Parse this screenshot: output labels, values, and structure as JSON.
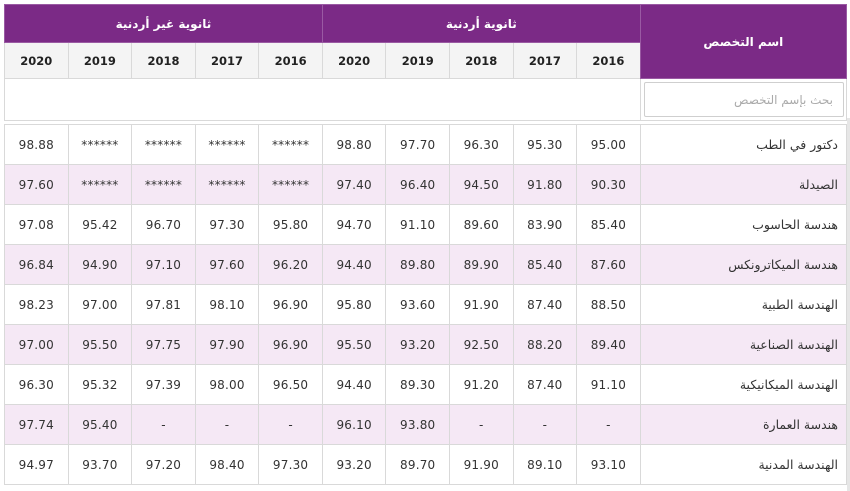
{
  "table": {
    "spec_header": "اسم التخصص",
    "groups": [
      {
        "id": "jordanian",
        "label": "ثانوية أردنية"
      },
      {
        "id": "non_jordanian",
        "label": "ثانوية غير أردنية"
      }
    ],
    "years": [
      "2016",
      "2017",
      "2018",
      "2019",
      "2020"
    ],
    "search": {
      "placeholder": "بحث بإسم التخصص",
      "value": ""
    },
    "rows": [
      {
        "name": "دكتور في الطب",
        "jordanian": [
          "95.00",
          "95.30",
          "96.30",
          "97.70",
          "98.80"
        ],
        "non_jordanian": [
          "******",
          "******",
          "******",
          "******",
          "98.88"
        ]
      },
      {
        "name": "الصيدلة",
        "jordanian": [
          "90.30",
          "91.80",
          "94.50",
          "96.40",
          "97.40"
        ],
        "non_jordanian": [
          "******",
          "******",
          "******",
          "******",
          "97.60"
        ]
      },
      {
        "name": "هندسة الحاسوب",
        "jordanian": [
          "85.40",
          "83.90",
          "89.60",
          "91.10",
          "94.70"
        ],
        "non_jordanian": [
          "95.80",
          "97.30",
          "96.70",
          "95.42",
          "97.08"
        ]
      },
      {
        "name": "هندسة الميكاترونكس",
        "jordanian": [
          "87.60",
          "85.40",
          "89.90",
          "89.80",
          "94.40"
        ],
        "non_jordanian": [
          "96.20",
          "97.60",
          "97.10",
          "94.90",
          "96.84"
        ]
      },
      {
        "name": "الهندسة الطبية",
        "jordanian": [
          "88.50",
          "87.40",
          "91.90",
          "93.60",
          "95.80"
        ],
        "non_jordanian": [
          "96.90",
          "98.10",
          "97.81",
          "97.00",
          "98.23"
        ]
      },
      {
        "name": "الهندسة الصناعية",
        "jordanian": [
          "89.40",
          "88.20",
          "92.50",
          "93.20",
          "95.50"
        ],
        "non_jordanian": [
          "96.90",
          "97.90",
          "97.75",
          "95.50",
          "97.00"
        ]
      },
      {
        "name": "الهندسة الميكانيكية",
        "jordanian": [
          "91.10",
          "87.40",
          "91.20",
          "89.30",
          "94.40"
        ],
        "non_jordanian": [
          "96.50",
          "98.00",
          "97.39",
          "95.32",
          "96.30"
        ]
      },
      {
        "name": "هندسة العمارة",
        "jordanian": [
          "-",
          "-",
          "-",
          "93.80",
          "96.10"
        ],
        "non_jordanian": [
          "-",
          "-",
          "-",
          "95.40",
          "97.74"
        ]
      },
      {
        "name": "الهندسة المدنية",
        "jordanian": [
          "93.10",
          "89.10",
          "91.90",
          "89.70",
          "93.20"
        ],
        "non_jordanian": [
          "97.30",
          "98.40",
          "97.20",
          "93.70",
          "94.97"
        ]
      }
    ]
  }
}
